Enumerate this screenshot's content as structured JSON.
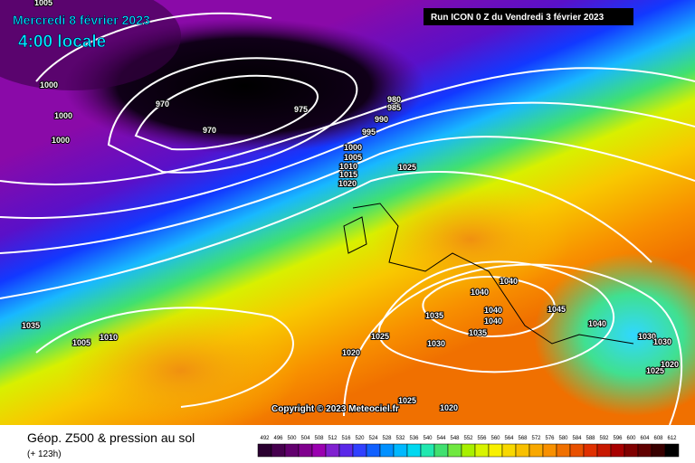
{
  "header": {
    "date": "Mercredi 8 février 2023",
    "time": "4:00 locale",
    "run": "Run ICON 0 Z du Vendredi 3 février 2023"
  },
  "copyright": "Copyright © 2023 Meteociel.fr",
  "footer": {
    "title": "Géop. Z500 & pression au sol",
    "lead": "(+ 123h)"
  },
  "isobar_labels": [
    "1005",
    "1000",
    "1000",
    "1000",
    "970",
    "970",
    "975",
    "980",
    "985",
    "990",
    "995",
    "1000",
    "1005",
    "1010",
    "1015",
    "1020",
    "1025",
    "1040",
    "1040",
    "1040",
    "1040",
    "1035",
    "1035",
    "1045",
    "1040",
    "1030",
    "1030",
    "1025",
    "1020",
    "1025",
    "1010",
    "1005",
    "1020",
    "1030",
    "1025",
    "1020",
    "1035"
  ],
  "legend": {
    "values": [
      492,
      496,
      500,
      504,
      508,
      512,
      516,
      520,
      524,
      528,
      532,
      536,
      540,
      544,
      548,
      552,
      556,
      560,
      564,
      568,
      572,
      576,
      580,
      584,
      588,
      592,
      596,
      600,
      604,
      608,
      612
    ]
  }
}
